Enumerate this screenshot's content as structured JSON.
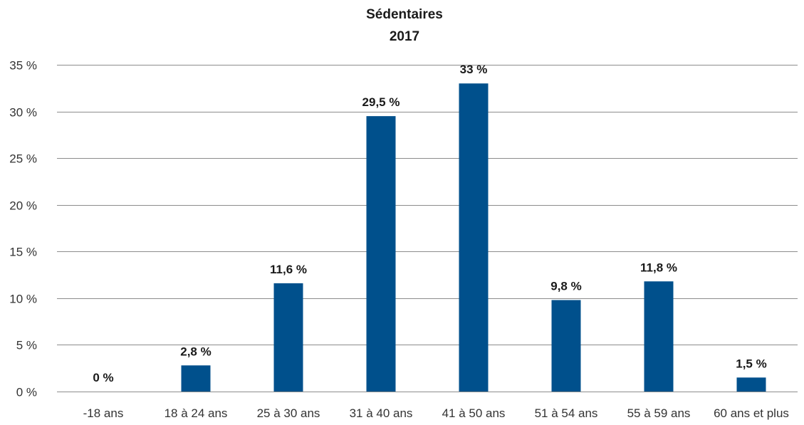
{
  "chart_data": {
    "type": "bar",
    "title": "Sédentaires",
    "subtitle": "2017",
    "xlabel": "",
    "ylabel": "",
    "ylim": [
      0,
      35
    ],
    "yticks": [
      0,
      5,
      10,
      15,
      20,
      25,
      30,
      35
    ],
    "ytick_labels": [
      "0 %",
      "5 %",
      "10 %",
      "15 %",
      "20 %",
      "25 %",
      "30 %",
      "35 %"
    ],
    "grid": true,
    "bar_color": "#00508c",
    "categories": [
      "-18 ans",
      "18 à 24 ans",
      "25 à 30 ans",
      "31 à 40 ans",
      "41 à 50 ans",
      "51 à 54 ans",
      "55 à 59 ans",
      "60 ans et plus"
    ],
    "values": [
      0,
      2.8,
      11.6,
      29.5,
      33,
      9.8,
      11.8,
      1.5
    ],
    "data_labels": [
      "0 %",
      "2,8 %",
      "11,6 %",
      "29,5 %",
      "33 %",
      "9,8 %",
      "11,8 %",
      "1,5 %"
    ]
  }
}
